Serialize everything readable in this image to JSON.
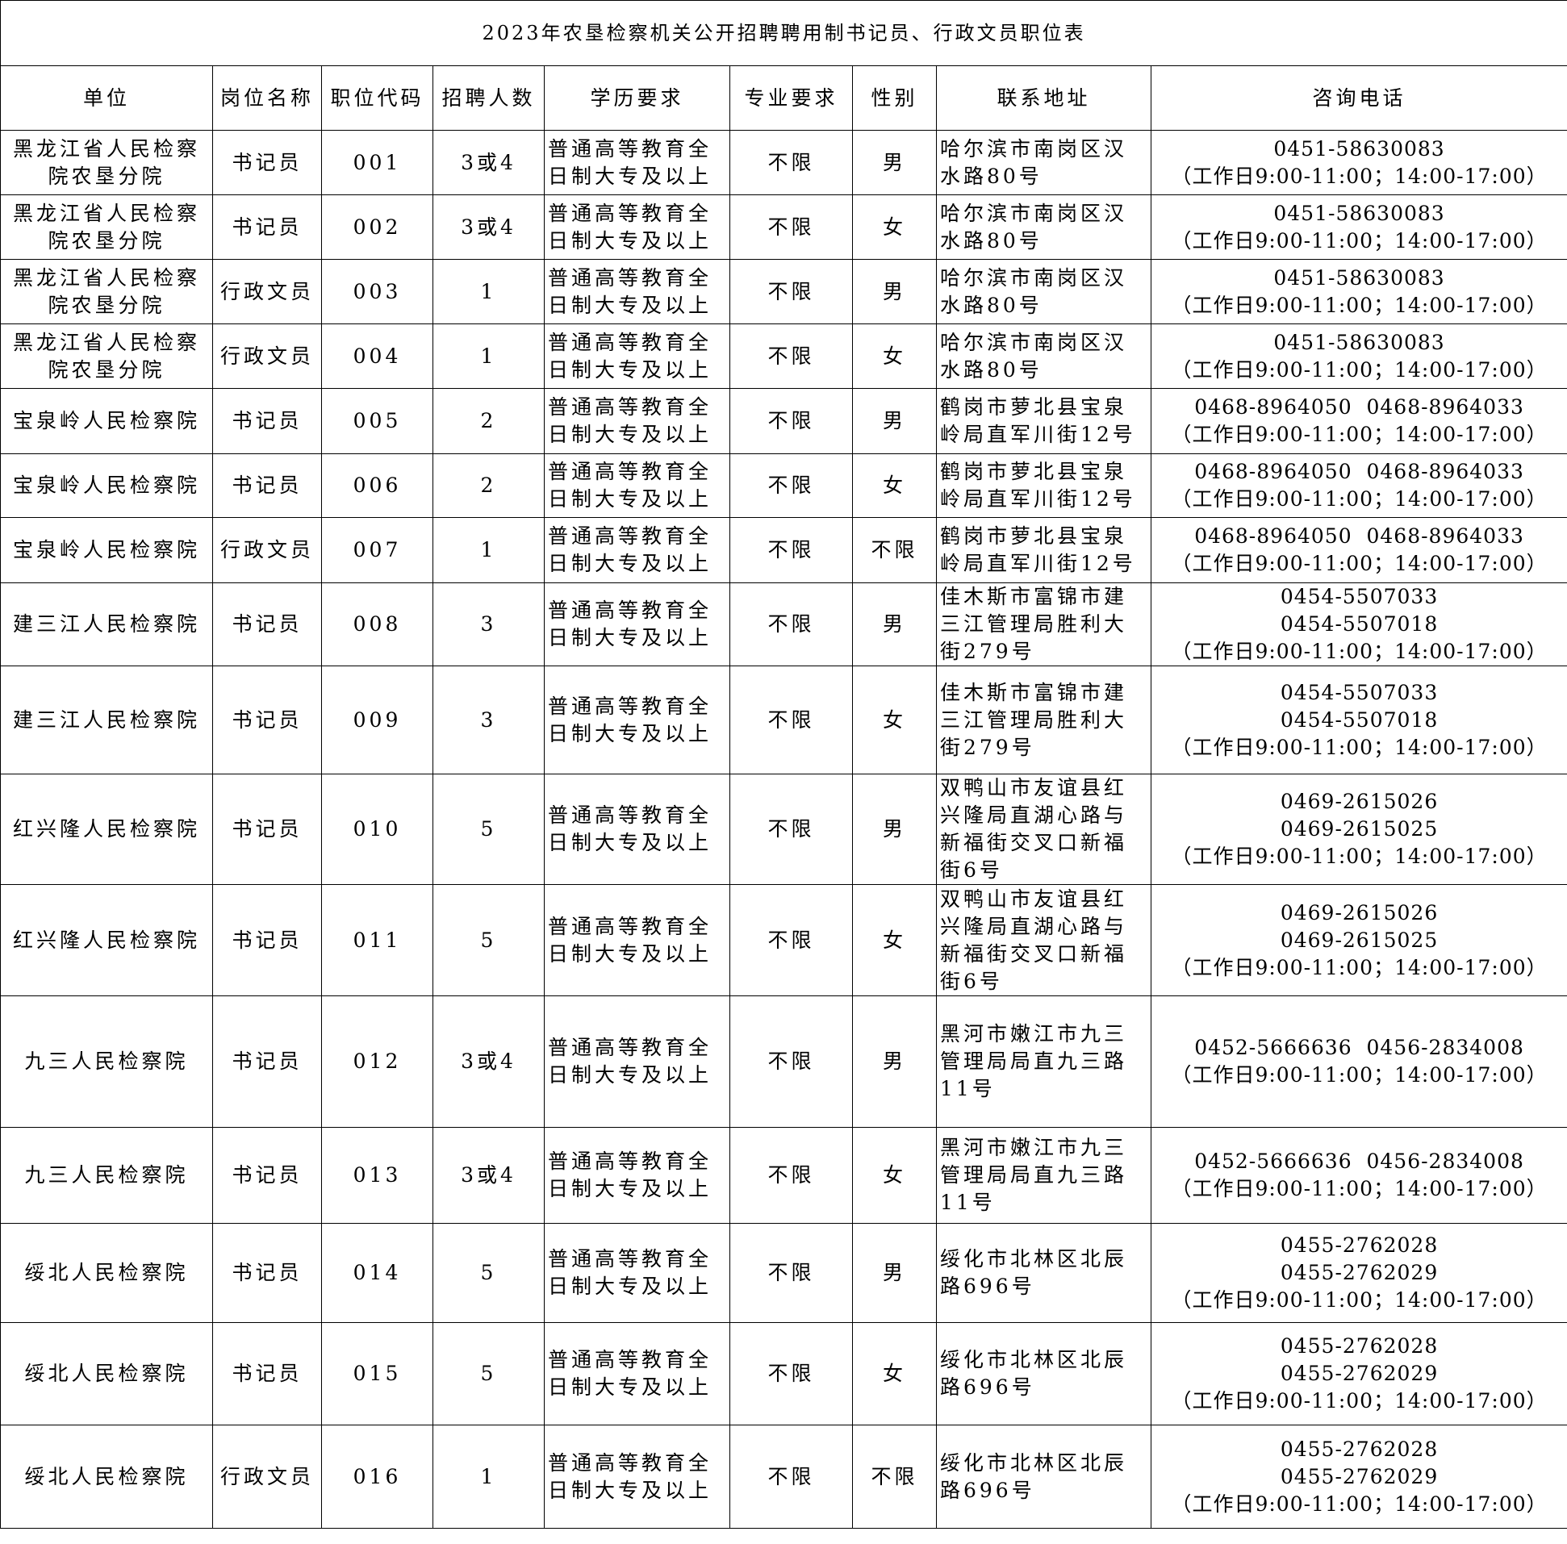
{
  "title": "2023年农垦检察机关公开招聘聘用制书记员、行政文员职位表",
  "headers": [
    "单位",
    "岗位名称",
    "职位代码",
    "招聘人数",
    "学历要求",
    "专业要求",
    "性别",
    "联系地址",
    "咨询电话"
  ],
  "rows": [
    {
      "unit": "黑龙江省人民检察院农垦分院",
      "post": "书记员",
      "code": "001",
      "count": "3或4",
      "edu": "普通高等教育全日制大专及以上",
      "major": "不限",
      "gender": "男",
      "address": "哈尔滨市南岗区汉水路80号",
      "phones": [
        "0451-58630083"
      ],
      "hours": "（工作日9:00-11:00；14:00-17:00）"
    },
    {
      "unit": "黑龙江省人民检察院农垦分院",
      "post": "书记员",
      "code": "002",
      "count": "3或4",
      "edu": "普通高等教育全日制大专及以上",
      "major": "不限",
      "gender": "女",
      "address": "哈尔滨市南岗区汉水路80号",
      "phones": [
        "0451-58630083"
      ],
      "hours": "（工作日9:00-11:00；14:00-17:00）"
    },
    {
      "unit": "黑龙江省人民检察院农垦分院",
      "post": "行政文员",
      "code": "003",
      "count": "1",
      "edu": "普通高等教育全日制大专及以上",
      "major": "不限",
      "gender": "男",
      "address": "哈尔滨市南岗区汉水路80号",
      "phones": [
        "0451-58630083"
      ],
      "hours": "（工作日9:00-11:00；14:00-17:00）"
    },
    {
      "unit": "黑龙江省人民检察院农垦分院",
      "post": "行政文员",
      "code": "004",
      "count": "1",
      "edu": "普通高等教育全日制大专及以上",
      "major": "不限",
      "gender": "女",
      "address": "哈尔滨市南岗区汉水路80号",
      "phones": [
        "0451-58630083"
      ],
      "hours": "（工作日9:00-11:00；14:00-17:00）"
    },
    {
      "unit": "宝泉岭人民检察院",
      "post": "书记员",
      "code": "005",
      "count": "2",
      "edu": "普通高等教育全日制大专及以上",
      "major": "不限",
      "gender": "男",
      "address": "鹤岗市萝北县宝泉岭局直军川街12号",
      "phones": [
        "0468-8964050  0468-8964033"
      ],
      "hours": "（工作日9:00-11:00；14:00-17:00）"
    },
    {
      "unit": "宝泉岭人民检察院",
      "post": "书记员",
      "code": "006",
      "count": "2",
      "edu": "普通高等教育全日制大专及以上",
      "major": "不限",
      "gender": "女",
      "address": "鹤岗市萝北县宝泉岭局直军川街12号",
      "phones": [
        "0468-8964050  0468-8964033"
      ],
      "hours": "（工作日9:00-11:00；14:00-17:00）"
    },
    {
      "unit": "宝泉岭人民检察院",
      "post": "行政文员",
      "code": "007",
      "count": "1",
      "edu": "普通高等教育全日制大专及以上",
      "major": "不限",
      "gender": "不限",
      "address": "鹤岗市萝北县宝泉岭局直军川街12号",
      "phones": [
        "0468-8964050  0468-8964033"
      ],
      "hours": "（工作日9:00-11:00；14:00-17:00）"
    },
    {
      "unit": "建三江人民检察院",
      "post": "书记员",
      "code": "008",
      "count": "3",
      "edu": "普通高等教育全日制大专及以上",
      "major": "不限",
      "gender": "男",
      "address": "佳木斯市富锦市建三江管理局胜利大街279号",
      "phones": [
        "0454-5507033",
        "0454-5507018"
      ],
      "hours": "（工作日9:00-11:00；14:00-17:00）"
    },
    {
      "unit": "建三江人民检察院",
      "post": "书记员",
      "code": "009",
      "count": "3",
      "edu": "普通高等教育全日制大专及以上",
      "major": "不限",
      "gender": "女",
      "address": "佳木斯市富锦市建三江管理局胜利大街279号",
      "phones": [
        "0454-5507033",
        "0454-5507018"
      ],
      "hours": "（工作日9:00-11:00；14:00-17:00）"
    },
    {
      "unit": "红兴隆人民检察院",
      "post": "书记员",
      "code": "010",
      "count": "5",
      "edu": "普通高等教育全日制大专及以上",
      "major": "不限",
      "gender": "男",
      "address": "双鸭山市友谊县红兴隆局直湖心路与新福街交叉口新福街6号",
      "phones": [
        "0469-2615026",
        "0469-2615025"
      ],
      "hours": "（工作日9:00-11:00；14:00-17:00）"
    },
    {
      "unit": "红兴隆人民检察院",
      "post": "书记员",
      "code": "011",
      "count": "5",
      "edu": "普通高等教育全日制大专及以上",
      "major": "不限",
      "gender": "女",
      "address": "双鸭山市友谊县红兴隆局直湖心路与新福街交叉口新福街6号",
      "phones": [
        "0469-2615026",
        "0469-2615025"
      ],
      "hours": "（工作日9:00-11:00；14:00-17:00）"
    },
    {
      "unit": "九三人民检察院",
      "post": "书记员",
      "code": "012",
      "count": "3或4",
      "edu": "普通高等教育全日制大专及以上",
      "major": "不限",
      "gender": "男",
      "address": "黑河市嫩江市九三管理局局直九三路11号",
      "phones": [
        "0452-5666636  0456-2834008"
      ],
      "hours": "（工作日9:00-11:00；14:00-17:00）"
    },
    {
      "unit": "九三人民检察院",
      "post": "书记员",
      "code": "013",
      "count": "3或4",
      "edu": "普通高等教育全日制大专及以上",
      "major": "不限",
      "gender": "女",
      "address": "黑河市嫩江市九三管理局局直九三路11号",
      "phones": [
        "0452-5666636  0456-2834008"
      ],
      "hours": "（工作日9:00-11:00；14:00-17:00）"
    },
    {
      "unit": "绥北人民检察院",
      "post": "书记员",
      "code": "014",
      "count": "5",
      "edu": "普通高等教育全日制大专及以上",
      "major": "不限",
      "gender": "男",
      "address": "绥化市北林区北辰路696号",
      "phones": [
        "0455-2762028",
        "0455-2762029"
      ],
      "hours": "（工作日9:00-11:00；14:00-17:00）"
    },
    {
      "unit": "绥北人民检察院",
      "post": "书记员",
      "code": "015",
      "count": "5",
      "edu": "普通高等教育全日制大专及以上",
      "major": "不限",
      "gender": "女",
      "address": "绥化市北林区北辰路696号",
      "phones": [
        "0455-2762028",
        "0455-2762029"
      ],
      "hours": "（工作日9:00-11:00；14:00-17:00）"
    },
    {
      "unit": "绥北人民检察院",
      "post": "行政文员",
      "code": "016",
      "count": "1",
      "edu": "普通高等教育全日制大专及以上",
      "major": "不限",
      "gender": "不限",
      "address": "绥化市北林区北辰路696号",
      "phones": [
        "0455-2762028",
        "0455-2762029"
      ],
      "hours": "（工作日9:00-11:00；14:00-17:00）"
    }
  ]
}
